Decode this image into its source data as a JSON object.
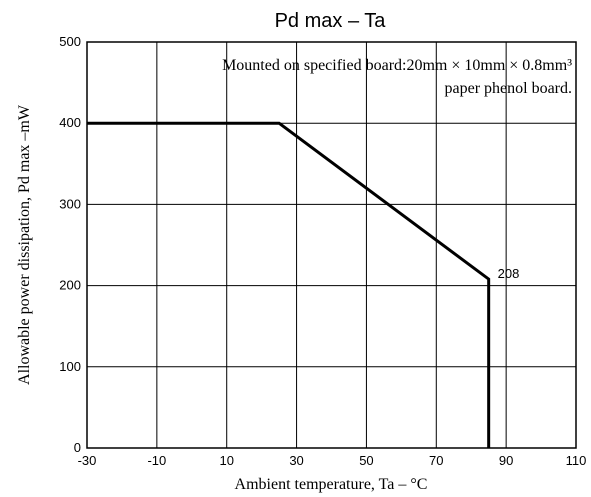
{
  "chart_data": {
    "type": "line",
    "title": "Pd max – Ta",
    "xlabel": "Ambient temperature, Ta – °C",
    "ylabel": "Allowable power dissipation, Pd max –mW",
    "xlim": [
      -30,
      110
    ],
    "ylim": [
      0,
      500
    ],
    "xticks": [
      -30,
      -10,
      10,
      30,
      50,
      70,
      90,
      110
    ],
    "yticks": [
      0,
      100,
      200,
      300,
      400,
      500
    ],
    "grid": true,
    "annotation": {
      "line1": "Mounted on specified board:20mm × 10mm × 0.8mm³",
      "line2": "paper phenol board."
    },
    "series": [
      {
        "x": [
          -30,
          25,
          85,
          85
        ],
        "y": [
          400,
          400,
          208,
          0
        ]
      }
    ],
    "data_labels": [
      {
        "x": 85,
        "y": 208,
        "text": "208"
      }
    ]
  }
}
